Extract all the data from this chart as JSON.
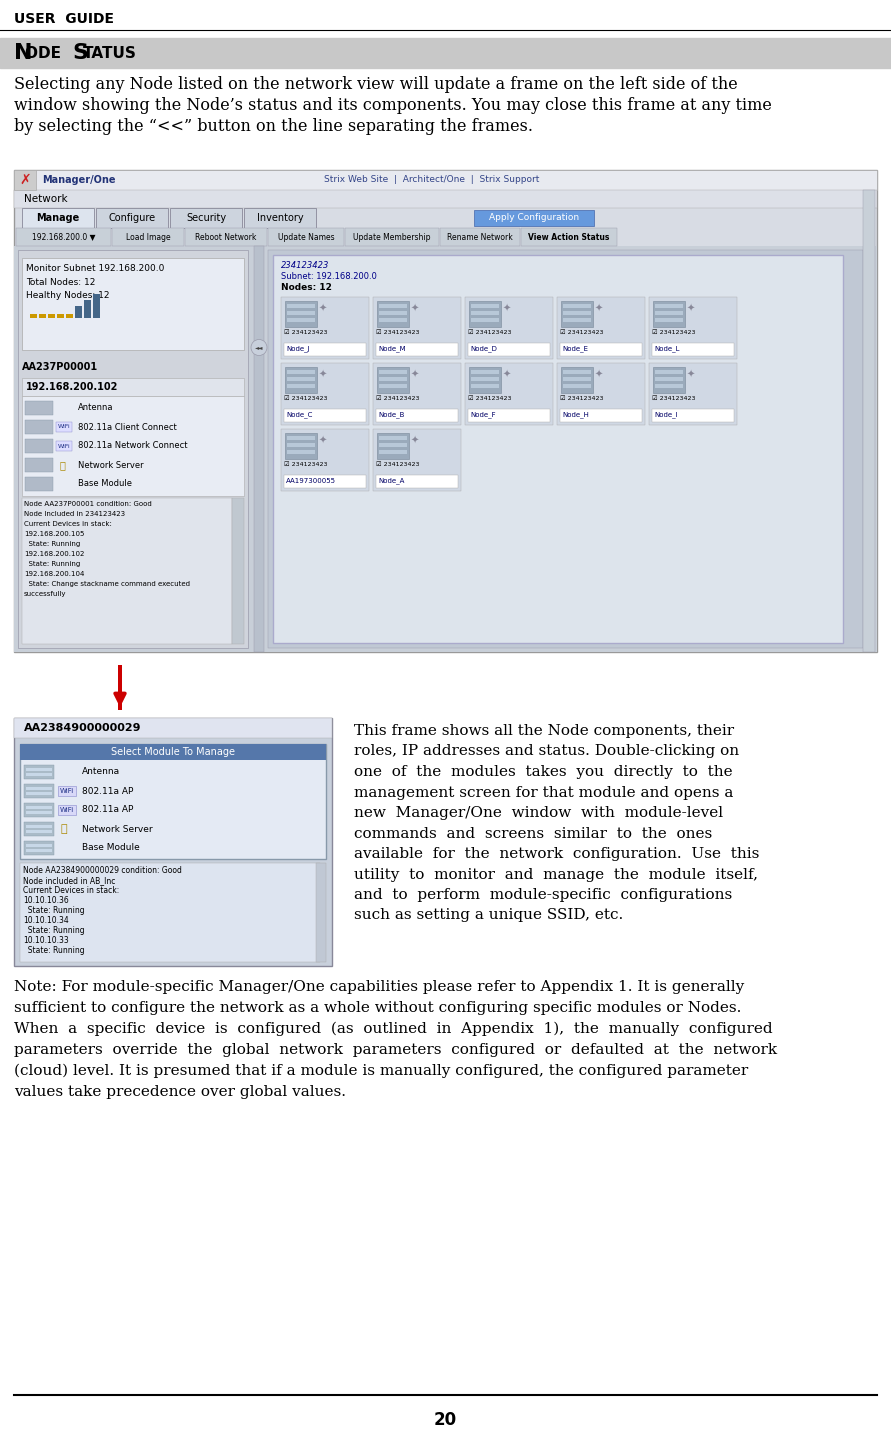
{
  "bg_color": "#ffffff",
  "header_text": "USER  GUIDE",
  "section_bg_color": "#c8c8c8",
  "body_text_1_lines": [
    "Selecting any Node listed on the network view will update a frame on the left side of the",
    "window showing the Node’s status and its components. You may close this frame at any time",
    "by selecting the “<<” button on the line separating the frames."
  ],
  "body_text_2_lines": [
    "This frame shows all the Node components, their",
    "roles, IP addresses and status. Double-clicking on",
    "one  of  the  modules  takes  you  directly  to  the",
    "management screen for that module and opens a",
    "new  Manager/One  window  with  module-level",
    "commands  and  screens  similar  to  the  ones",
    "available  for  the  network  configuration.  Use  this",
    "utility  to  monitor  and  manage  the  module  itself,",
    "and  to  perform  module-specific  configurations",
    "such as setting a unique SSID, etc."
  ],
  "note_text_lines": [
    "Note: For module-specific Manager/One capabilities please refer to Appendix 1. It is generally",
    "sufficient to configure the network as a whole without configuring specific modules or Nodes.",
    "When  a  specific  device  is  configured  (as  outlined  in  Appendix  1),  the  manually  configured",
    "parameters  override  the  global  network  parameters  configured  or  defaulted  at  the  network",
    "(cloud) level. It is presumed that if a module is manually configured, the configured parameter",
    "values take precedence over global values."
  ],
  "page_number": "20",
  "arrow_color": "#cc0000",
  "node_names_row1": [
    "Node_J",
    "Node_M",
    "Node_D",
    "Node_E",
    "Node_L"
  ],
  "node_names_row2": [
    "Node_C",
    "Node_B",
    "Node_F",
    "Node_H",
    "Node_I"
  ],
  "node_names_row3": [
    "AA197300055",
    "Node_A"
  ]
}
